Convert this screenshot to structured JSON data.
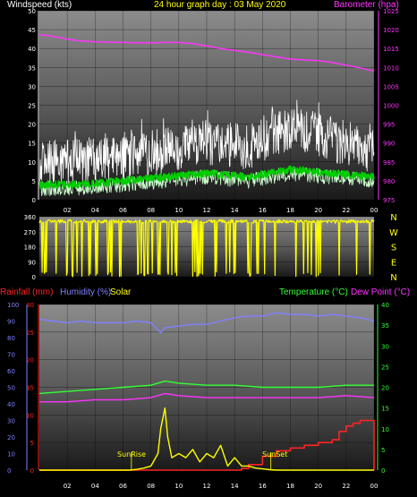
{
  "header": {
    "windspeed_label": "Windspeed (kts)",
    "title": "24 hour graph day : 03 May 2020",
    "barometer_label": "Barometer (hpa)"
  },
  "legend": {
    "rainfall": "Rainfall (mm)",
    "humidity": "Humidity (%)",
    "solar": "Solar",
    "temperature": "Temperature (°C)",
    "dewpoint": "Dew Point (°C)",
    "sunrise": "SunRise",
    "sunset": "SunSet"
  },
  "colors": {
    "windspeed": "#ffffff",
    "gust_avg": "#00cc00",
    "wind_low": "#ccffcc",
    "barometer": "#ff33ff",
    "direction": "#ffff00",
    "rainfall": "#ff2222",
    "humidity": "#8080ff",
    "solar": "#ffff00",
    "temperature": "#33ff33",
    "dewpoint": "#ff33ff"
  },
  "chart_data": [
    {
      "type": "line",
      "name": "wind",
      "x_ticks": [
        "02",
        "04",
        "06",
        "08",
        "10",
        "12",
        "14",
        "16",
        "18",
        "20",
        "22",
        "00"
      ],
      "y_left_ticks": [
        "0",
        "5",
        "10",
        "15",
        "20",
        "25",
        "30",
        "35",
        "40",
        "45",
        "50"
      ],
      "y_left_label": "Windspeed (kts)",
      "ylim_left": [
        0,
        50
      ],
      "y_right_ticks": [
        "975",
        "980",
        "985",
        "990",
        "995",
        "1000",
        "1005",
        "1010",
        "1015",
        "1020",
        "1025"
      ],
      "y_right_label": "Barometer (hpa)",
      "ylim_right": [
        975,
        1025
      ],
      "series": [
        {
          "name": "Barometer (hpa)",
          "axis": "right",
          "x": [
            0,
            1,
            2,
            3,
            4,
            5,
            6,
            7,
            8,
            9,
            10,
            11,
            12,
            13,
            14,
            15,
            16,
            17,
            18,
            19,
            20,
            21,
            22,
            23,
            24
          ],
          "values": [
            1018.7,
            1018.2,
            1017.5,
            1017.0,
            1016.8,
            1016.7,
            1016.6,
            1016.5,
            1016.5,
            1016.6,
            1016.6,
            1016.3,
            1015.7,
            1015.0,
            1014.5,
            1014.0,
            1013.4,
            1012.8,
            1012.2,
            1012.0,
            1011.8,
            1011.3,
            1010.6,
            1009.9,
            1009.0
          ]
        }
      ],
      "wind_avg_profile": {
        "x": [
          0,
          3,
          6,
          9,
          12,
          15,
          18,
          21,
          24
        ],
        "values": [
          4,
          4,
          5,
          6,
          7,
          6,
          8,
          7,
          6
        ]
      },
      "wind_gust_profile": {
        "x": [
          0,
          3,
          6,
          9,
          12,
          15,
          18,
          21,
          24
        ],
        "values": [
          10,
          10,
          11,
          13,
          15,
          14,
          19,
          16,
          13
        ]
      }
    },
    {
      "type": "scatter",
      "name": "wind direction",
      "y_ticks": [
        "0",
        "90",
        "180",
        "270",
        "360"
      ],
      "ylim": [
        0,
        360
      ],
      "compass_labels": [
        "N",
        "W",
        "S",
        "E",
        "N"
      ],
      "dominant_direction": 330
    },
    {
      "type": "line",
      "name": "temperature, humidity, solar, rainfall",
      "x_ticks": [
        "02",
        "04",
        "06",
        "08",
        "10",
        "12",
        "14",
        "16",
        "18",
        "20",
        "22",
        "00"
      ],
      "y_left_humidity_ticks": [
        "0",
        "10",
        "20",
        "30",
        "40",
        "50",
        "60",
        "70",
        "80",
        "90",
        "100"
      ],
      "y_left_rain_ticks": [
        "0",
        "5",
        "10",
        "15",
        "20",
        "25",
        "30"
      ],
      "y_right_ticks": [
        "0",
        "5",
        "10",
        "15",
        "20",
        "25",
        "30",
        "35",
        "40"
      ],
      "ylim_humidity": [
        0,
        100
      ],
      "ylim_rain": [
        0,
        30
      ],
      "ylim_temp": [
        0,
        40
      ],
      "series": [
        {
          "name": "Humidity (%)",
          "axis": "humidity",
          "x": [
            0,
            1,
            2,
            3,
            4,
            5,
            6,
            7,
            8,
            8.7,
            9,
            10,
            11,
            12,
            13,
            14,
            15,
            16,
            17,
            18,
            19,
            20,
            21,
            22,
            23,
            24
          ],
          "values": [
            91,
            90,
            89,
            90,
            89,
            89,
            89,
            90,
            89,
            83,
            86,
            87,
            88,
            88,
            90,
            92,
            93,
            93,
            95,
            94,
            94,
            93,
            94,
            93,
            92,
            90
          ]
        },
        {
          "name": "Temperature (°C)",
          "axis": "temp",
          "x": [
            0,
            2,
            4,
            6,
            8,
            9,
            10,
            12,
            14,
            16,
            18,
            20,
            22,
            24
          ],
          "values": [
            18.5,
            19,
            19.5,
            20,
            20.5,
            21.5,
            21,
            20.5,
            20.5,
            20,
            20,
            20,
            20.5,
            20.5
          ]
        },
        {
          "name": "Dew Point (°C)",
          "axis": "temp",
          "x": [
            0,
            2,
            4,
            6,
            8,
            9,
            10,
            12,
            14,
            16,
            18,
            20,
            22,
            24
          ],
          "values": [
            16.5,
            16.5,
            17,
            17,
            17.5,
            18.5,
            18,
            17.5,
            17.5,
            17.5,
            17.5,
            17.5,
            18,
            17.5
          ]
        },
        {
          "name": "Rainfall (mm)",
          "axis": "rain",
          "x": [
            0,
            14,
            14.5,
            15,
            16,
            17,
            18,
            19,
            20,
            21,
            21.5,
            22,
            22.5,
            23,
            23.9,
            24
          ],
          "values": [
            0,
            0,
            0.3,
            1,
            2.5,
            3.5,
            4,
            4.5,
            5,
            5.5,
            7,
            8,
            8.5,
            9,
            9,
            0
          ]
        },
        {
          "name": "Solar",
          "axis": "temp",
          "x": [
            0,
            6.5,
            7,
            7.5,
            8,
            8.5,
            8.7,
            9,
            9.2,
            9.5,
            10,
            10.5,
            11,
            11.5,
            12,
            12.5,
            13,
            13.5,
            14,
            14.5,
            15,
            15.5,
            16,
            16.5,
            17,
            24
          ],
          "values": [
            0,
            0,
            0.2,
            0.5,
            1,
            4,
            10,
            15,
            8,
            3,
            4,
            3,
            5,
            2,
            4,
            3,
            6,
            1,
            3,
            1,
            1,
            0.5,
            0.3,
            0.1,
            0,
            0
          ]
        }
      ]
    }
  ]
}
